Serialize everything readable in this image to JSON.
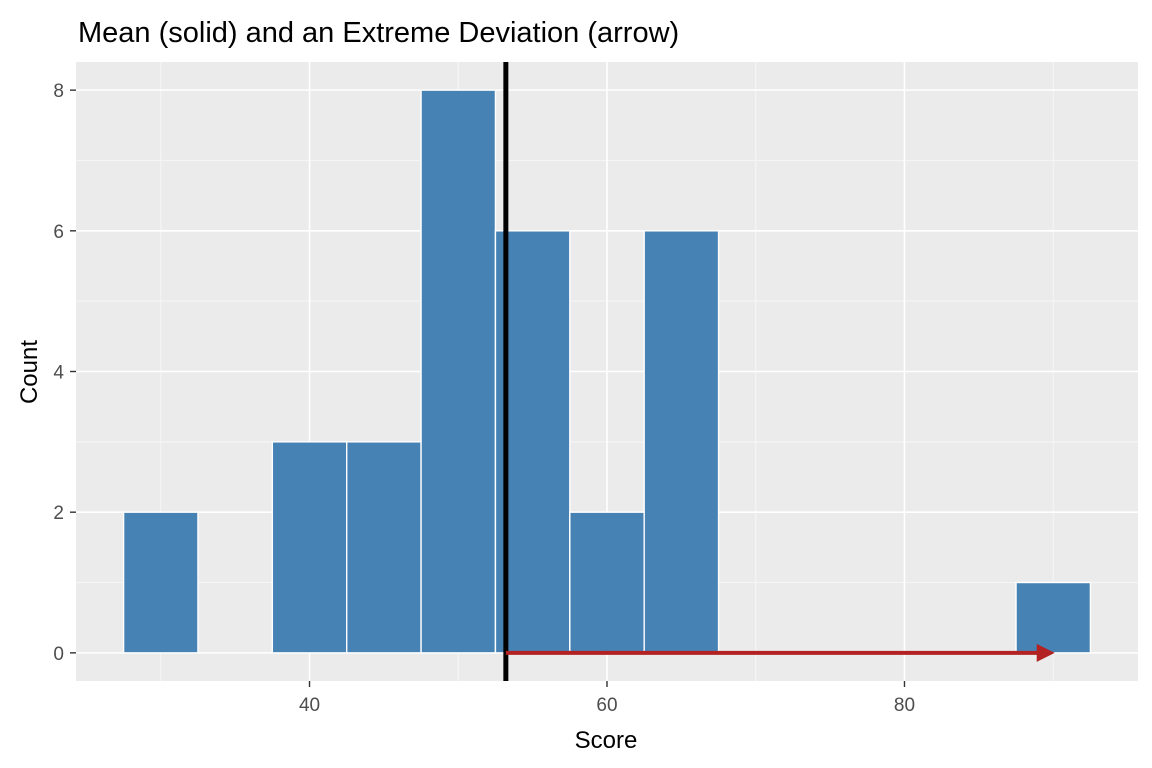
{
  "chart_data": {
    "type": "bar",
    "title": "Mean (solid) and an Extreme Deviation (arrow)",
    "xlabel": "Score",
    "ylabel": "Count",
    "xlim": [
      24.3,
      95.7
    ],
    "ylim": [
      -0.4,
      8.4
    ],
    "x_ticks": [
      40,
      60,
      80
    ],
    "y_ticks": [
      0,
      2,
      4,
      6,
      8
    ],
    "x_tick_labels": [
      "40",
      "60",
      "80"
    ],
    "y_tick_labels": [
      "0",
      "2",
      "4",
      "6",
      "8"
    ],
    "bin_width": 5,
    "bins": [
      {
        "center": 30,
        "count": 2
      },
      {
        "center": 35,
        "count": 0
      },
      {
        "center": 40,
        "count": 3
      },
      {
        "center": 45,
        "count": 3
      },
      {
        "center": 50,
        "count": 8
      },
      {
        "center": 55,
        "count": 6
      },
      {
        "center": 60,
        "count": 2
      },
      {
        "center": 65,
        "count": 6
      },
      {
        "center": 70,
        "count": 0
      },
      {
        "center": 75,
        "count": 0
      },
      {
        "center": 80,
        "count": 0
      },
      {
        "center": 85,
        "count": 0
      },
      {
        "center": 90,
        "count": 1
      }
    ],
    "mean_line": {
      "x": 53.2
    },
    "arrow": {
      "x_start": 53.2,
      "x_end": 90.1,
      "y": 0
    },
    "grid": true,
    "colors": {
      "bar_fill": "#4682b4",
      "bar_outline": "#ffffff",
      "panel_background": "#ebebeb",
      "grid_major": "#ffffff",
      "grid_minor": "#f5f5f5",
      "mean_line": "#000000",
      "arrow": "#b22222"
    }
  }
}
